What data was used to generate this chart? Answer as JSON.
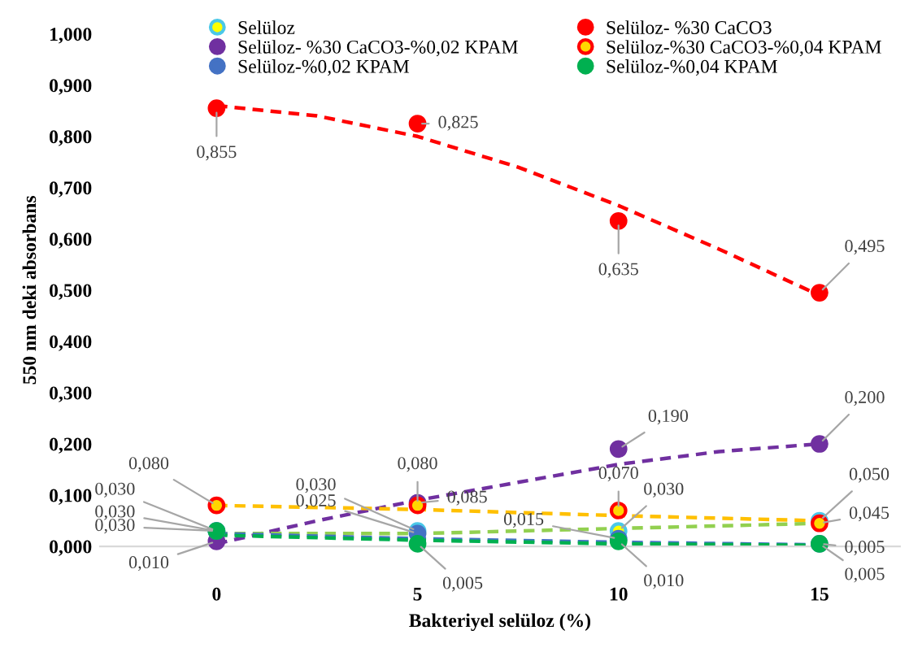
{
  "chart_data": {
    "type": "scatter",
    "xlabel": "Bakteriyel selüloz (%)",
    "ylabel": "550 nm deki absorbans",
    "x": [
      0,
      5,
      10,
      15
    ],
    "xlim": [
      -2.9,
      17
    ],
    "xticks": [
      0,
      5,
      10,
      15
    ],
    "ylim": [
      0,
      1.0
    ],
    "yticks": [
      {
        "value": 0,
        "label": "0,000"
      },
      {
        "value": 0.1,
        "label": "0,100"
      },
      {
        "value": 0.2,
        "label": "0,200"
      },
      {
        "value": 0.3,
        "label": "0,300"
      },
      {
        "value": 0.4,
        "label": "0,400"
      },
      {
        "value": 0.5,
        "label": "0,500"
      },
      {
        "value": 0.6,
        "label": "0,600"
      },
      {
        "value": 0.7,
        "label": "0,700"
      },
      {
        "value": 0.8,
        "label": "0,800"
      },
      {
        "value": 0.9,
        "label": "0,900"
      },
      {
        "value": 1.0,
        "label": "1,000"
      }
    ],
    "grid": false,
    "legend": "top",
    "marker": "circle",
    "series": [
      {
        "name": "Selüloz",
        "color": "#ffff00",
        "values": [
          0.03,
          0.03,
          0.03,
          0.05
        ],
        "value_labels": [
          "0,030",
          "0,030",
          "0,030",
          "0,050"
        ]
      },
      {
        "name": "Selüloz- %30 CaCO3",
        "color": "#ff0000",
        "values": [
          0.855,
          0.825,
          0.635,
          0.495
        ],
        "value_labels": [
          "0,855",
          "0,825",
          "0,635",
          "0,495"
        ]
      },
      {
        "name": "Selüloz- %30 CaCO3-%0,02 KPAM",
        "color": "#7030a0",
        "values": [
          0.01,
          0.085,
          0.19,
          0.2
        ],
        "value_labels": [
          "0,010",
          "0,085",
          "0,190",
          "0,200"
        ]
      },
      {
        "name": "Selüloz-%30 CaCO3-%0,04 KPAM",
        "color": "#ffd700",
        "values": [
          0.08,
          0.08,
          0.07,
          0.045
        ],
        "value_labels": [
          "0,080",
          "0,080",
          "0,070",
          "0,045"
        ]
      },
      {
        "name": "Selüloz-%0,02 KPAM",
        "color": "#4472c4",
        "values": [
          0.03,
          0.025,
          0.015,
          0.005
        ],
        "value_labels": [
          "0,030",
          "0,025",
          "0,015",
          "0,005"
        ]
      },
      {
        "name": "Selüloz-%0,04 KPAM",
        "color": "#00b050",
        "values": [
          0.03,
          0.005,
          0.01,
          0.005
        ],
        "value_labels": [
          "0,030",
          "0,005",
          "0,010",
          "0,005"
        ]
      },
      {
        "type": "line",
        "marker": "none",
        "line_style": "dashed",
        "color": "#ff0000",
        "x": [
          0,
          2.5,
          5,
          7.5,
          10,
          12.5,
          15
        ],
        "values": [
          0.86,
          0.84,
          0.8,
          0.74,
          0.665,
          0.58,
          0.49
        ]
      },
      {
        "type": "line",
        "marker": "none",
        "line_style": "dashed",
        "color": "#7030a0",
        "x": [
          0,
          2.5,
          5,
          7.5,
          10,
          12.5,
          15
        ],
        "values": [
          0.005,
          0.05,
          0.09,
          0.125,
          0.16,
          0.185,
          0.2
        ]
      },
      {
        "type": "line",
        "marker": "none",
        "line_style": "dashed",
        "color": "#ffc000",
        "x": [
          0,
          5,
          10,
          15
        ],
        "values": [
          0.08,
          0.072,
          0.06,
          0.05
        ]
      },
      {
        "type": "line",
        "marker": "none",
        "line_style": "dashed",
        "color": "#92d050",
        "x": [
          0,
          5,
          10,
          15
        ],
        "values": [
          0.025,
          0.025,
          0.035,
          0.045
        ]
      },
      {
        "type": "line",
        "marker": "none",
        "line_style": "dashed",
        "color": "#4472c4",
        "x": [
          0,
          5,
          10,
          15
        ],
        "values": [
          0.025,
          0.015,
          0.008,
          0.003
        ]
      },
      {
        "type": "line",
        "marker": "none",
        "line_style": "dashed",
        "color": "#00b050",
        "x": [
          0,
          5,
          10,
          15
        ],
        "values": [
          0.022,
          0.012,
          0.005,
          0.002
        ]
      }
    ]
  }
}
